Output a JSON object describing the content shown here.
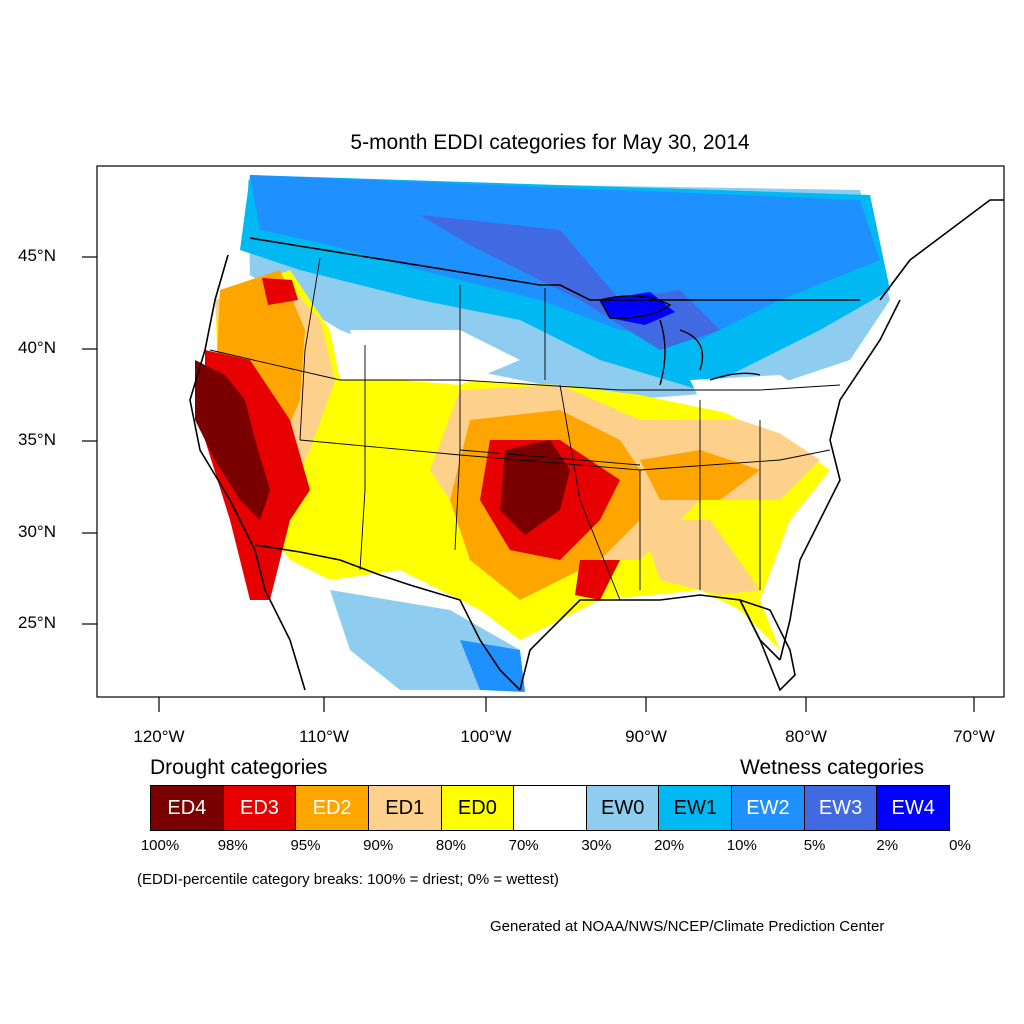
{
  "title": "5-month EDDI categories for May 30, 2014",
  "lat_labels": [
    "45°N",
    "40°N",
    "35°N",
    "30°N",
    "25°N"
  ],
  "lon_labels": [
    "120°W",
    "110°W",
    "100°W",
    "90°W",
    "80°W",
    "70°W"
  ],
  "legend": {
    "drought_heading": "Drought categories",
    "wetness_heading": "Wetness categories",
    "categories": [
      {
        "label": "ED4",
        "color": "#7a0000",
        "text_color": "#ffffff"
      },
      {
        "label": "ED3",
        "color": "#e60000",
        "text_color": "#ffffff"
      },
      {
        "label": "ED2",
        "color": "#ffa500",
        "text_color": "#ffffff"
      },
      {
        "label": "ED1",
        "color": "#fdd08c",
        "text_color": "#000000"
      },
      {
        "label": "ED0",
        "color": "#ffff00",
        "text_color": "#000000"
      },
      {
        "label": "",
        "color": "#ffffff",
        "text_color": "#000000"
      },
      {
        "label": "EW0",
        "color": "#8fcdf0",
        "text_color": "#000000"
      },
      {
        "label": "EW1",
        "color": "#00b8f2",
        "text_color": "#000000"
      },
      {
        "label": "EW2",
        "color": "#1e90ff",
        "text_color": "#ffffff"
      },
      {
        "label": "EW3",
        "color": "#4169e1",
        "text_color": "#ffffff"
      },
      {
        "label": "EW4",
        "color": "#0000ff",
        "text_color": "#ffffff"
      }
    ],
    "breaks": [
      "100%",
      "98%",
      "95%",
      "90%",
      "80%",
      "70%",
      "30%",
      "20%",
      "10%",
      "5%",
      "2%",
      "0%"
    ]
  },
  "note": "(EDDI-percentile category breaks: 100% = driest; 0% = wettest)",
  "credit": "Generated at NOAA/NWS/NCEP/Climate Prediction Center"
}
